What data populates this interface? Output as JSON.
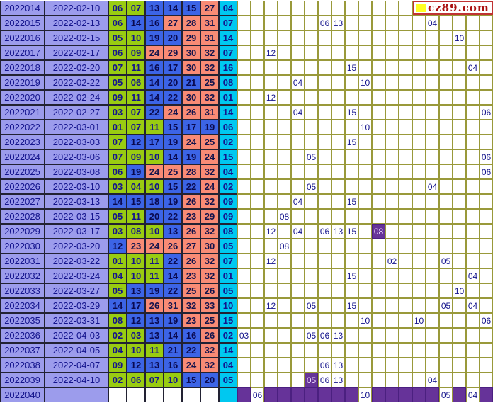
{
  "site": {
    "logo_text": "cz89.com"
  },
  "colors": {
    "lavender": "#9C9CEC",
    "zone1_green": "#99CC11",
    "zone2_blue": "#3C64E6",
    "zone3_salmon": "#F98B75",
    "blue_ball_cyan": "#00C8F0",
    "grid_line_olive": "#99993A",
    "purple_hit": "#663399",
    "text_navy": "#14148C",
    "logo_red": "#AA1111",
    "logo_yellow": "#FFFF22"
  },
  "grid_column_count": 19,
  "chart_data": {
    "type": "table",
    "title": "SSQ lottery trend chart (periods 2022014-2022040): red balls, blue ball, kill-number grid",
    "columns": [
      "period",
      "date",
      "red1",
      "red2",
      "red3",
      "red4",
      "red5",
      "red6",
      "blue",
      "grid cols 1-19"
    ],
    "zone_rule": "red 01-11 green, 12-22 blue, 23-33 salmon",
    "rows": [
      {
        "period": "2022014",
        "date": "2022-02-10",
        "reds": [
          "06",
          "07",
          "13",
          "14",
          "15",
          "27"
        ],
        "blue": "04",
        "grid": []
      },
      {
        "period": "2022015",
        "date": "2022-02-13",
        "reds": [
          "06",
          "14",
          "16",
          "27",
          "28",
          "31"
        ],
        "blue": "07",
        "grid": [
          {
            "c": 7,
            "v": "06"
          },
          {
            "c": 8,
            "v": "13"
          },
          {
            "c": 15,
            "v": "04"
          }
        ]
      },
      {
        "period": "2022016",
        "date": "2022-02-15",
        "reds": [
          "05",
          "10",
          "19",
          "20",
          "29",
          "31"
        ],
        "blue": "14",
        "grid": [
          {
            "c": 17,
            "v": "10"
          }
        ]
      },
      {
        "period": "2022017",
        "date": "2022-02-17",
        "reds": [
          "06",
          "09",
          "24",
          "29",
          "30",
          "32"
        ],
        "blue": "07",
        "grid": [
          {
            "c": 3,
            "v": "12"
          }
        ]
      },
      {
        "period": "2022018",
        "date": "2022-02-20",
        "reds": [
          "07",
          "11",
          "16",
          "17",
          "30",
          "32"
        ],
        "blue": "16",
        "grid": [
          {
            "c": 9,
            "v": "15"
          },
          {
            "c": 18,
            "v": "04"
          }
        ]
      },
      {
        "period": "2022019",
        "date": "2022-02-22",
        "reds": [
          "05",
          "06",
          "14",
          "20",
          "21",
          "25"
        ],
        "blue": "08",
        "grid": [
          {
            "c": 5,
            "v": "04"
          },
          {
            "c": 10,
            "v": "10"
          }
        ]
      },
      {
        "period": "2022020",
        "date": "2022-02-24",
        "reds": [
          "09",
          "11",
          "14",
          "22",
          "30",
          "32"
        ],
        "blue": "01",
        "grid": [
          {
            "c": 3,
            "v": "12"
          }
        ]
      },
      {
        "period": "2022021",
        "date": "2022-02-27",
        "reds": [
          "03",
          "07",
          "22",
          "24",
          "26",
          "31"
        ],
        "blue": "14",
        "grid": [
          {
            "c": 5,
            "v": "04"
          },
          {
            "c": 9,
            "v": "15"
          },
          {
            "c": 19,
            "v": "06"
          }
        ]
      },
      {
        "period": "2022022",
        "date": "2022-03-01",
        "reds": [
          "01",
          "07",
          "11",
          "15",
          "17",
          "19"
        ],
        "blue": "06",
        "grid": [
          {
            "c": 10,
            "v": "10"
          }
        ]
      },
      {
        "period": "2022023",
        "date": "2022-03-03",
        "reds": [
          "07",
          "12",
          "17",
          "19",
          "24",
          "25"
        ],
        "blue": "02",
        "grid": [
          {
            "c": 9,
            "v": "15"
          }
        ]
      },
      {
        "period": "2022024",
        "date": "2022-03-06",
        "reds": [
          "07",
          "09",
          "10",
          "14",
          "19",
          "24"
        ],
        "blue": "15",
        "grid": [
          {
            "c": 6,
            "v": "05"
          },
          {
            "c": 19,
            "v": "06"
          }
        ]
      },
      {
        "period": "2022025",
        "date": "2022-03-08",
        "reds": [
          "06",
          "19",
          "24",
          "25",
          "28",
          "32"
        ],
        "blue": "04",
        "grid": [
          {
            "c": 19,
            "v": "06"
          }
        ]
      },
      {
        "period": "2022026",
        "date": "2022-03-10",
        "reds": [
          "03",
          "04",
          "10",
          "15",
          "22",
          "24"
        ],
        "blue": "02",
        "grid": [
          {
            "c": 6,
            "v": "05"
          },
          {
            "c": 15,
            "v": "04"
          }
        ]
      },
      {
        "period": "2022027",
        "date": "2022-03-13",
        "reds": [
          "14",
          "15",
          "18",
          "19",
          "26",
          "32"
        ],
        "blue": "09",
        "grid": [
          {
            "c": 5,
            "v": "04"
          },
          {
            "c": 9,
            "v": "15"
          }
        ]
      },
      {
        "period": "2022028",
        "date": "2022-03-15",
        "reds": [
          "05",
          "11",
          "20",
          "22",
          "23",
          "29"
        ],
        "blue": "09",
        "grid": [
          {
            "c": 4,
            "v": "08"
          }
        ]
      },
      {
        "period": "2022029",
        "date": "2022-03-17",
        "reds": [
          "03",
          "08",
          "10",
          "13",
          "26",
          "32"
        ],
        "blue": "08",
        "grid": [
          {
            "c": 3,
            "v": "12"
          },
          {
            "c": 5,
            "v": "04"
          },
          {
            "c": 7,
            "v": "06"
          },
          {
            "c": 8,
            "v": "13"
          },
          {
            "c": 9,
            "v": "15"
          },
          {
            "c": 11,
            "v": "08",
            "p": true
          }
        ]
      },
      {
        "period": "2022030",
        "date": "2022-03-20",
        "reds": [
          "12",
          "23",
          "24",
          "26",
          "27",
          "30"
        ],
        "blue": "05",
        "grid": [
          {
            "c": 4,
            "v": "08"
          }
        ]
      },
      {
        "period": "2022031",
        "date": "2022-03-22",
        "reds": [
          "01",
          "10",
          "11",
          "22",
          "26",
          "32"
        ],
        "blue": "07",
        "grid": [
          {
            "c": 3,
            "v": "12"
          },
          {
            "c": 12,
            "v": "02"
          },
          {
            "c": 16,
            "v": "05"
          }
        ]
      },
      {
        "period": "2022032",
        "date": "2022-03-24",
        "reds": [
          "04",
          "10",
          "11",
          "14",
          "23",
          "32"
        ],
        "blue": "01",
        "grid": [
          {
            "c": 9,
            "v": "15"
          },
          {
            "c": 18,
            "v": "04"
          }
        ]
      },
      {
        "period": "2022033",
        "date": "2022-03-27",
        "reds": [
          "05",
          "13",
          "19",
          "22",
          "25",
          "26"
        ],
        "blue": "05",
        "grid": [
          {
            "c": 17,
            "v": "10"
          }
        ]
      },
      {
        "period": "2022034",
        "date": "2022-03-29",
        "reds": [
          "14",
          "17",
          "26",
          "31",
          "32",
          "33"
        ],
        "blue": "10",
        "grid": [
          {
            "c": 3,
            "v": "12"
          },
          {
            "c": 6,
            "v": "05"
          },
          {
            "c": 9,
            "v": "15"
          },
          {
            "c": 16,
            "v": "05"
          },
          {
            "c": 18,
            "v": "04"
          }
        ]
      },
      {
        "period": "2022035",
        "date": "2022-03-31",
        "reds": [
          "08",
          "12",
          "13",
          "19",
          "23",
          "25"
        ],
        "blue": "15",
        "grid": [
          {
            "c": 10,
            "v": "10"
          },
          {
            "c": 14,
            "v": "10"
          },
          {
            "c": 19,
            "v": "06"
          }
        ]
      },
      {
        "period": "2022036",
        "date": "2022-04-03",
        "reds": [
          "02",
          "03",
          "13",
          "14",
          "16",
          "26"
        ],
        "blue": "02",
        "grid": [
          {
            "c": 1,
            "v": "03"
          },
          {
            "c": 6,
            "v": "05"
          },
          {
            "c": 7,
            "v": "06"
          },
          {
            "c": 8,
            "v": "13"
          }
        ]
      },
      {
        "period": "2022037",
        "date": "2022-04-05",
        "reds": [
          "04",
          "10",
          "11",
          "21",
          "22",
          "32"
        ],
        "blue": "14",
        "grid": []
      },
      {
        "period": "2022038",
        "date": "2022-04-07",
        "reds": [
          "09",
          "12",
          "13",
          "16",
          "24",
          "32"
        ],
        "blue": "04",
        "grid": [
          {
            "c": 7,
            "v": "06"
          },
          {
            "c": 8,
            "v": "13"
          }
        ]
      },
      {
        "period": "2022039",
        "date": "2022-04-10",
        "reds": [
          "02",
          "06",
          "07",
          "10",
          "15",
          "20"
        ],
        "blue": "05",
        "grid": [
          {
            "c": 6,
            "v": "05",
            "p": true
          },
          {
            "c": 7,
            "v": "06"
          },
          {
            "c": 8,
            "v": "13"
          },
          {
            "c": 15,
            "v": "04"
          }
        ]
      },
      {
        "period": "2022040",
        "date": "",
        "reds": [
          "",
          "",
          "",
          "",
          "",
          ""
        ],
        "blue": "",
        "future": true,
        "grid": [
          {
            "c": 2,
            "v": "06"
          },
          {
            "c": 10,
            "v": "10"
          },
          {
            "c": 16,
            "v": "05"
          },
          {
            "c": 18,
            "v": "04"
          }
        ]
      }
    ]
  }
}
